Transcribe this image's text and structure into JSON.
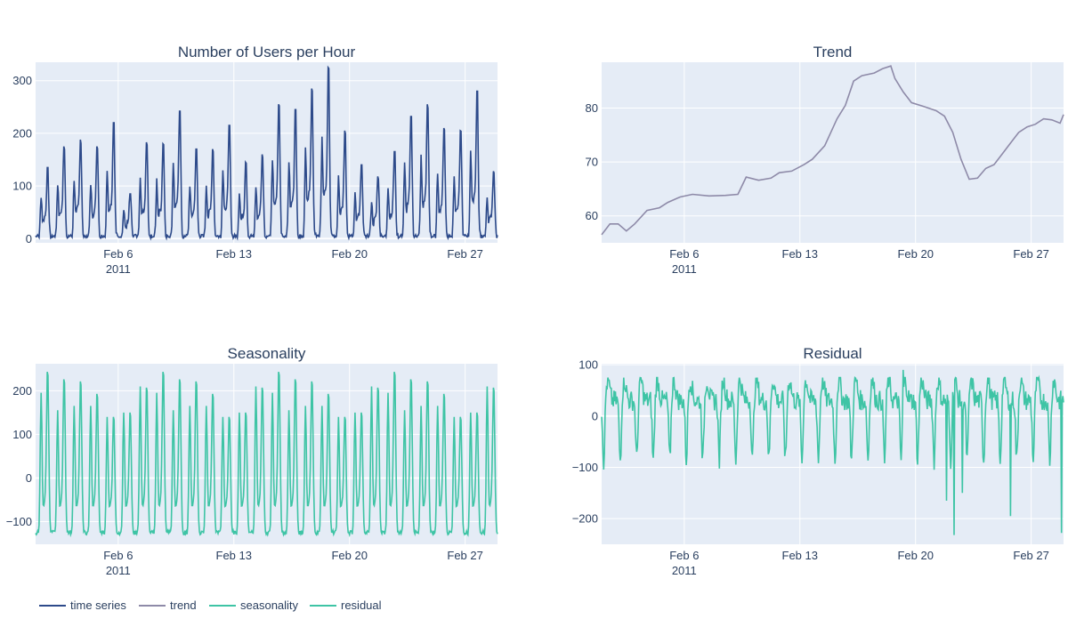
{
  "colors": {
    "plot_bg": "#e5ecf6",
    "grid": "#ffffff",
    "text": "#2a3f5f",
    "time_series": "#2d4a8a",
    "trend": "#8e8aa8",
    "seasonality": "#3ec4a5",
    "residual": "#3ec4a5"
  },
  "legend": {
    "placement": "bottom-left",
    "items": [
      {
        "label": "time series",
        "color_key": "time_series"
      },
      {
        "label": "trend",
        "color_key": "trend"
      },
      {
        "label": "seasonality",
        "color_key": "seasonality"
      },
      {
        "label": "residual",
        "color_key": "residual"
      }
    ]
  },
  "chart_data": [
    {
      "id": "timeseries",
      "type": "line",
      "title": "Number of Users per Hour",
      "series_key": "time_series",
      "x_range": [
        "2011-02-01",
        "2011-02-28 23:00"
      ],
      "ylim": [
        -8,
        335
      ],
      "y_ticks": [
        0,
        100,
        200,
        300
      ],
      "x_ticks": [
        {
          "date": "2011-02-06",
          "label": "Feb 6",
          "sub": "2011"
        },
        {
          "date": "2011-02-13",
          "label": "Feb 13",
          "sub": ""
        },
        {
          "date": "2011-02-20",
          "label": "Feb 20",
          "sub": ""
        },
        {
          "date": "2011-02-27",
          "label": "Feb 27",
          "sub": ""
        }
      ],
      "daily_peaks": [
        {
          "date": "2011-02-01",
          "peak": 135
        },
        {
          "date": "2011-02-02",
          "peak": 175
        },
        {
          "date": "2011-02-03",
          "peak": 188
        },
        {
          "date": "2011-02-04",
          "peak": 175
        },
        {
          "date": "2011-02-05",
          "peak": 220
        },
        {
          "date": "2011-02-06",
          "peak": 85
        },
        {
          "date": "2011-02-07",
          "peak": 183
        },
        {
          "date": "2011-02-08",
          "peak": 180
        },
        {
          "date": "2011-02-09",
          "peak": 242
        },
        {
          "date": "2011-02-10",
          "peak": 170
        },
        {
          "date": "2011-02-11",
          "peak": 170
        },
        {
          "date": "2011-02-12",
          "peak": 215
        },
        {
          "date": "2011-02-13",
          "peak": 145
        },
        {
          "date": "2011-02-14",
          "peak": 160
        },
        {
          "date": "2011-02-15",
          "peak": 255
        },
        {
          "date": "2011-02-16",
          "peak": 245
        },
        {
          "date": "2011-02-17",
          "peak": 285
        },
        {
          "date": "2011-02-18",
          "peak": 325
        },
        {
          "date": "2011-02-19",
          "peak": 205
        },
        {
          "date": "2011-02-20",
          "peak": 140
        },
        {
          "date": "2011-02-21",
          "peak": 118
        },
        {
          "date": "2011-02-22",
          "peak": 165
        },
        {
          "date": "2011-02-23",
          "peak": 232
        },
        {
          "date": "2011-02-24",
          "peak": 255
        },
        {
          "date": "2011-02-25",
          "peak": 210
        },
        {
          "date": "2011-02-26",
          "peak": 205
        },
        {
          "date": "2011-02-27",
          "peak": 280
        },
        {
          "date": "2011-02-28",
          "peak": 128
        }
      ]
    },
    {
      "id": "trend",
      "type": "line",
      "title": "Trend",
      "series_key": "trend",
      "x_range": [
        "2011-02-01",
        "2011-02-28 23:00"
      ],
      "ylim": [
        55,
        88.5
      ],
      "y_ticks": [
        60,
        70,
        80
      ],
      "x_ticks": [
        {
          "date": "2011-02-06",
          "label": "Feb 6",
          "sub": "2011"
        },
        {
          "date": "2011-02-13",
          "label": "Feb 13",
          "sub": ""
        },
        {
          "date": "2011-02-20",
          "label": "Feb 20",
          "sub": ""
        },
        {
          "date": "2011-02-27",
          "label": "Feb 27",
          "sub": ""
        }
      ],
      "points": [
        {
          "t": "2011-02-01 00:00",
          "y": 56.5
        },
        {
          "t": "2011-02-01 12:00",
          "y": 58.5
        },
        {
          "t": "2011-02-02 00:00",
          "y": 58.5
        },
        {
          "t": "2011-02-02 12:00",
          "y": 57.2
        },
        {
          "t": "2011-02-03 00:00",
          "y": 58.5
        },
        {
          "t": "2011-02-03 18:00",
          "y": 61.0
        },
        {
          "t": "2011-02-04 12:00",
          "y": 61.5
        },
        {
          "t": "2011-02-05 00:00",
          "y": 62.5
        },
        {
          "t": "2011-02-05 18:00",
          "y": 63.5
        },
        {
          "t": "2011-02-06 12:00",
          "y": 64.0
        },
        {
          "t": "2011-02-07 12:00",
          "y": 63.7
        },
        {
          "t": "2011-02-08 12:00",
          "y": 63.8
        },
        {
          "t": "2011-02-09 06:00",
          "y": 64.0
        },
        {
          "t": "2011-02-09 18:00",
          "y": 67.2
        },
        {
          "t": "2011-02-10 12:00",
          "y": 66.6
        },
        {
          "t": "2011-02-11 06:00",
          "y": 67.0
        },
        {
          "t": "2011-02-11 18:00",
          "y": 68.0
        },
        {
          "t": "2011-02-12 12:00",
          "y": 68.3
        },
        {
          "t": "2011-02-13 06:00",
          "y": 69.5
        },
        {
          "t": "2011-02-13 18:00",
          "y": 70.5
        },
        {
          "t": "2011-02-14 12:00",
          "y": 73.0
        },
        {
          "t": "2011-02-15 06:00",
          "y": 78.0
        },
        {
          "t": "2011-02-15 18:00",
          "y": 80.5
        },
        {
          "t": "2011-02-16 06:00",
          "y": 85.0
        },
        {
          "t": "2011-02-16 18:00",
          "y": 86.0
        },
        {
          "t": "2011-02-17 12:00",
          "y": 86.5
        },
        {
          "t": "2011-02-18 00:00",
          "y": 87.3
        },
        {
          "t": "2011-02-18 12:00",
          "y": 87.8
        },
        {
          "t": "2011-02-18 18:00",
          "y": 85.5
        },
        {
          "t": "2011-02-19 06:00",
          "y": 83.0
        },
        {
          "t": "2011-02-19 18:00",
          "y": 81.0
        },
        {
          "t": "2011-02-20 12:00",
          "y": 80.3
        },
        {
          "t": "2011-02-21 06:00",
          "y": 79.5
        },
        {
          "t": "2011-02-21 18:00",
          "y": 78.5
        },
        {
          "t": "2011-02-22 06:00",
          "y": 75.5
        },
        {
          "t": "2011-02-22 18:00",
          "y": 70.5
        },
        {
          "t": "2011-02-23 06:00",
          "y": 66.8
        },
        {
          "t": "2011-02-23 18:00",
          "y": 67.0
        },
        {
          "t": "2011-02-24 06:00",
          "y": 68.8
        },
        {
          "t": "2011-02-24 18:00",
          "y": 69.5
        },
        {
          "t": "2011-02-25 06:00",
          "y": 71.5
        },
        {
          "t": "2011-02-25 18:00",
          "y": 73.5
        },
        {
          "t": "2011-02-26 06:00",
          "y": 75.5
        },
        {
          "t": "2011-02-26 18:00",
          "y": 76.5
        },
        {
          "t": "2011-02-27 06:00",
          "y": 77.0
        },
        {
          "t": "2011-02-27 18:00",
          "y": 78.0
        },
        {
          "t": "2011-02-28 06:00",
          "y": 77.8
        },
        {
          "t": "2011-02-28 18:00",
          "y": 77.2
        },
        {
          "t": "2011-02-28 23:00",
          "y": 78.8
        }
      ]
    },
    {
      "id": "seasonality",
      "type": "line",
      "title": "Seasonality",
      "series_key": "seasonality",
      "x_range": [
        "2011-02-01",
        "2011-02-28 23:00"
      ],
      "ylim": [
        -152,
        262
      ],
      "y_ticks": [
        -100,
        0,
        100,
        200
      ],
      "x_ticks": [
        {
          "date": "2011-02-06",
          "label": "Feb 6",
          "sub": "2011"
        },
        {
          "date": "2011-02-13",
          "label": "Feb 13",
          "sub": ""
        },
        {
          "date": "2011-02-20",
          "label": "Feb 20",
          "sub": ""
        },
        {
          "date": "2011-02-27",
          "label": "Feb 27",
          "sub": ""
        }
      ],
      "period_days": 7,
      "weekly_peaks": [
        {
          "day": "Tue",
          "morning": 190,
          "evening": 248,
          "trough": -130
        },
        {
          "day": "Wed",
          "morning": 150,
          "evening": 230,
          "trough": -130
        },
        {
          "day": "Thu",
          "morning": 160,
          "evening": 225,
          "trough": -130
        },
        {
          "day": "Fri",
          "morning": 160,
          "evening": 195,
          "trough": -130
        },
        {
          "day": "Sat",
          "morning": 135,
          "evening": 140,
          "trough": -130
        },
        {
          "day": "Sun",
          "morning": 150,
          "evening": 150,
          "trough": -130
        },
        {
          "day": "Mon",
          "morning": 205,
          "evening": 210,
          "trough": -130
        }
      ]
    },
    {
      "id": "residual",
      "type": "line",
      "title": "Residual",
      "series_key": "residual",
      "x_range": [
        "2011-02-01",
        "2011-02-28 23:00"
      ],
      "ylim": [
        -250,
        102
      ],
      "y_ticks": [
        -200,
        -100,
        0,
        100
      ],
      "x_ticks": [
        {
          "date": "2011-02-06",
          "label": "Feb 6",
          "sub": "2011"
        },
        {
          "date": "2011-02-13",
          "label": "Feb 13",
          "sub": ""
        },
        {
          "date": "2011-02-20",
          "label": "Feb 20",
          "sub": ""
        },
        {
          "date": "2011-02-27",
          "label": "Feb 27",
          "sub": ""
        }
      ],
      "typical_range": [
        -140,
        75
      ],
      "notable_points": [
        {
          "t": "2011-02-19 06:00",
          "y": 90
        },
        {
          "t": "2011-02-21 21:00",
          "y": -165
        },
        {
          "t": "2011-02-22 08:00",
          "y": -232
        },
        {
          "t": "2011-02-22 20:00",
          "y": -150
        },
        {
          "t": "2011-02-25 18:00",
          "y": -195
        },
        {
          "t": "2011-02-28 20:00",
          "y": -228
        }
      ]
    }
  ]
}
